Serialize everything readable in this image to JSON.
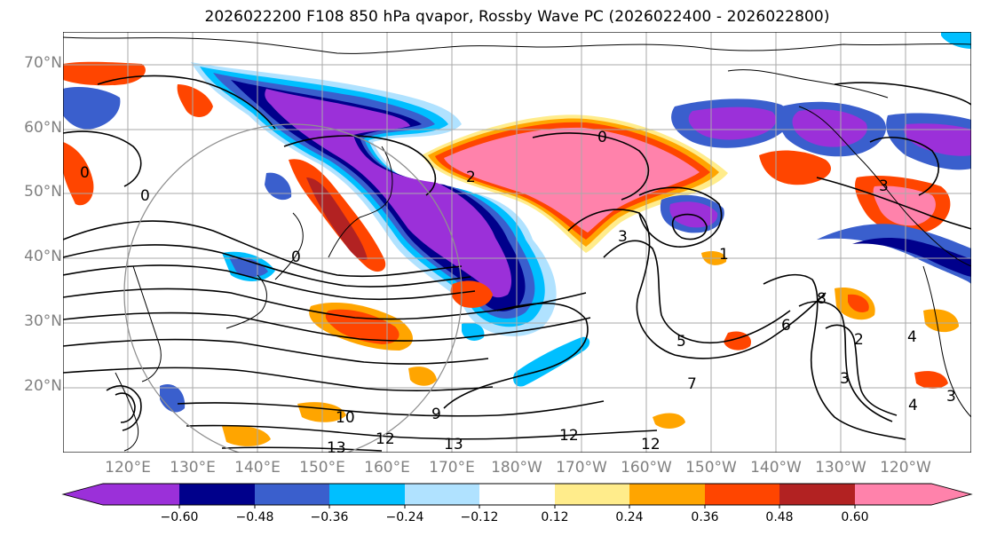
{
  "title": "2026022200 F108 850 hPa qvapor, Rossby Wave PC (2026022400 - 2026022800)",
  "axes": {
    "lat_labels": [
      "70°N",
      "60°N",
      "50°N",
      "40°N",
      "30°N",
      "20°N"
    ],
    "lon_labels": [
      "120°E",
      "130°E",
      "140°E",
      "150°E",
      "160°E",
      "170°E",
      "180°W",
      "170°W",
      "160°W",
      "150°W",
      "140°W",
      "130°W",
      "120°W"
    ],
    "label_color": "#808080"
  },
  "colorbar": {
    "tick_labels": [
      "−0.60",
      "−0.48",
      "−0.36",
      "−0.24",
      "−0.12",
      "0.12",
      "0.24",
      "0.36",
      "0.48",
      "0.60"
    ],
    "colors": [
      "#9b30d9",
      "#00008b",
      "#3a5fcd",
      "#00bfff",
      "#b0e2ff",
      "#ffffff",
      "#ffec8b",
      "#ffa500",
      "#ff4500",
      "#b22222",
      "#ff82ab"
    ],
    "extend": "both"
  },
  "contour_labels": [
    "0",
    "0",
    "0",
    "0",
    "2",
    "3",
    "3",
    "4",
    "5",
    "6",
    "7",
    "8",
    "9",
    "10",
    "12",
    "12",
    "12",
    "13",
    "13",
    "3",
    "4",
    "2",
    "3",
    "1"
  ]
}
